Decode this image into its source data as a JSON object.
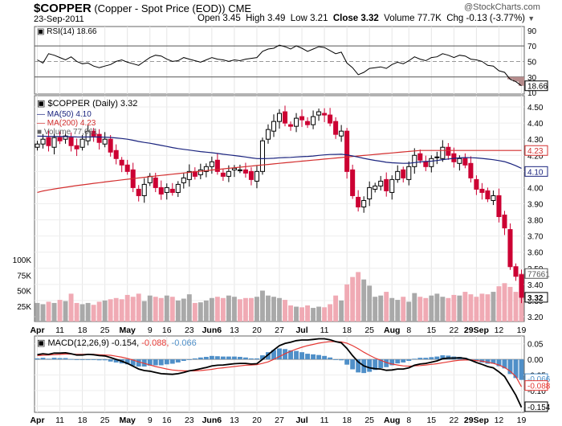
{
  "header": {
    "symbol": "$COPPER",
    "description": "(Copper - Spot Price (EOD))",
    "exchange": "CME",
    "date": "23-Sep-2011",
    "open_label": "Open",
    "open": "3.45",
    "high_label": "High",
    "high": "3.49",
    "low_label": "Low",
    "low": "3.21",
    "close_label": "Close",
    "close": "3.32",
    "volume_label": "Volume",
    "volume": "77.7K",
    "chg_label": "Chg",
    "chg": "-0.13 (-3.77%)",
    "watermark": "@StockCharts.com"
  },
  "colors": {
    "up": "#000000",
    "down": "#cc0033",
    "ma50": "#1a237e",
    "ma200": "#d32f2f",
    "vol_up": "#a9a9a9",
    "vol_down": "#f0aab4",
    "macd": "#000000",
    "signal": "#e53935",
    "hist": "#4f8fc8",
    "rsi": "#000000"
  },
  "chart_data": [
    {
      "type": "line",
      "panel": "rsi",
      "legend": "RSI(14) 18.66",
      "yticks": [
        10,
        30,
        50,
        70,
        90
      ],
      "ylim": [
        8,
        95
      ],
      "levels": [
        30,
        70
      ],
      "last_label": "18.66",
      "values": [
        52,
        48,
        60,
        58,
        55,
        52,
        56,
        50,
        47,
        48,
        44,
        42,
        44,
        46,
        50,
        52,
        49,
        47,
        45,
        50,
        55,
        58,
        57,
        53,
        50,
        51,
        55,
        53,
        51,
        49,
        52,
        55,
        53,
        52,
        50,
        52,
        51,
        53,
        54,
        55,
        63,
        66,
        67,
        71,
        69,
        66,
        70,
        67,
        63,
        66,
        69,
        68,
        64,
        60,
        62,
        48,
        42,
        33,
        36,
        41,
        42,
        43,
        41,
        46,
        49,
        47,
        51,
        56,
        53,
        51,
        55,
        56,
        60,
        58,
        55,
        58,
        57,
        53,
        52,
        50,
        45,
        44,
        38,
        36,
        27,
        24,
        18.66
      ]
    },
    {
      "type": "candlestick",
      "panel": "price",
      "legend": "$COPPER (Daily) 3.32",
      "ma_legends": [
        "MA(50) 4.10",
        "MA(200) 4.23"
      ],
      "yticks": [
        3.2,
        3.3,
        3.4,
        3.5,
        3.6,
        3.7,
        3.8,
        3.9,
        4.0,
        4.1,
        4.2,
        4.3,
        4.4,
        4.5
      ],
      "ylim": [
        3.17,
        4.57
      ],
      "last_labels": {
        "ma200": "4.23",
        "ma50": "4.10",
        "close": "3.32"
      },
      "x": [
        "Apr",
        "11",
        "18",
        "25",
        "May",
        "9",
        "16",
        "23",
        "Jun6",
        "13",
        "20",
        "27",
        "Jul",
        "11",
        "18",
        "25",
        "Aug",
        "8",
        "15",
        "22",
        "29Sep",
        "12",
        "19"
      ],
      "closes": [
        4.27,
        4.3,
        4.26,
        4.31,
        4.29,
        4.32,
        4.26,
        4.24,
        4.3,
        4.35,
        4.32,
        4.28,
        4.3,
        4.22,
        4.18,
        4.14,
        4.1,
        4.0,
        3.95,
        4.02,
        4.07,
        4.0,
        3.96,
        4.0,
        3.97,
        4.02,
        4.06,
        4.1,
        4.07,
        4.11,
        4.13,
        4.16,
        4.1,
        4.07,
        4.1,
        4.12,
        4.11,
        4.09,
        4.05,
        4.1,
        4.29,
        4.36,
        4.41,
        4.46,
        4.4,
        4.38,
        4.43,
        4.42,
        4.39,
        4.44,
        4.47,
        4.45,
        4.4,
        4.33,
        4.35,
        4.1,
        3.95,
        3.88,
        3.92,
        4.0,
        4.01,
        4.04,
        3.98,
        4.05,
        4.1,
        4.06,
        4.13,
        4.2,
        4.17,
        4.13,
        4.18,
        4.19,
        4.25,
        4.2,
        4.16,
        4.18,
        4.14,
        4.06,
        3.99,
        3.97,
        3.93,
        3.95,
        3.82,
        3.75,
        3.51,
        3.45,
        3.32
      ]
    },
    {
      "type": "bar",
      "panel": "volume",
      "legend": "Volume 77,661",
      "yticks": [
        "25K",
        "50K",
        "75K",
        "100K"
      ],
      "ylim": [
        0,
        130000
      ],
      "last_label": "77661",
      "values": [
        30000,
        28000,
        32000,
        30000,
        35000,
        33000,
        45000,
        30000,
        28000,
        30000,
        27000,
        32000,
        34000,
        36000,
        38000,
        36000,
        43000,
        40000,
        45000,
        33000,
        42000,
        40000,
        38000,
        42000,
        40000,
        34000,
        37000,
        44000,
        30000,
        31000,
        34000,
        38000,
        40000,
        38000,
        42000,
        40000,
        36000,
        38000,
        38000,
        40000,
        50000,
        42000,
        40000,
        38000,
        35000,
        26000,
        24000,
        23000,
        26000,
        22000,
        24000,
        23000,
        28000,
        42000,
        34000,
        60000,
        72000,
        80000,
        68000,
        58000,
        40000,
        42000,
        48000,
        38000,
        35000,
        40000,
        32000,
        46000,
        40000,
        38000,
        42000,
        45000,
        40000,
        38000,
        43000,
        42000,
        48000,
        44000,
        40000,
        45000,
        44000,
        48000,
        57000,
        62000,
        56000,
        48000,
        77661
      ]
    },
    {
      "type": "line",
      "panel": "macd",
      "legend_prefix": "MACD(12,26,9)",
      "legend_macd": "-0.154",
      "legend_signal": "-0.088",
      "legend_hist": "-0.066",
      "yticks": [
        "0.05",
        "0.00",
        "-0.05",
        "-0.10",
        "-0.15"
      ],
      "ylim": [
        -0.17,
        0.075
      ],
      "last_labels": {
        "hist": "-0.066",
        "signal": "-0.088",
        "macd": "-0.154"
      },
      "macd": [
        0.015,
        0.018,
        0.016,
        0.02,
        0.02,
        0.021,
        0.018,
        0.014,
        0.014,
        0.016,
        0.015,
        0.012,
        0.011,
        0.006,
        0.0,
        -0.006,
        -0.013,
        -0.022,
        -0.031,
        -0.036,
        -0.038,
        -0.042,
        -0.046,
        -0.047,
        -0.048,
        -0.046,
        -0.042,
        -0.037,
        -0.034,
        -0.03,
        -0.026,
        -0.021,
        -0.019,
        -0.018,
        -0.016,
        -0.014,
        -0.013,
        -0.013,
        -0.015,
        -0.014,
        0.0,
        0.015,
        0.03,
        0.044,
        0.051,
        0.055,
        0.06,
        0.062,
        0.062,
        0.064,
        0.066,
        0.066,
        0.063,
        0.057,
        0.053,
        0.035,
        0.012,
        -0.008,
        -0.021,
        -0.027,
        -0.03,
        -0.031,
        -0.035,
        -0.034,
        -0.031,
        -0.031,
        -0.027,
        -0.019,
        -0.015,
        -0.013,
        -0.009,
        -0.005,
        0.002,
        0.004,
        0.004,
        0.005,
        0.003,
        -0.003,
        -0.01,
        -0.016,
        -0.023,
        -0.027,
        -0.04,
        -0.055,
        -0.085,
        -0.115,
        -0.154
      ],
      "signal": [
        0.012,
        0.013,
        0.014,
        0.015,
        0.016,
        0.017,
        0.017,
        0.016,
        0.016,
        0.016,
        0.016,
        0.015,
        0.014,
        0.013,
        0.01,
        0.007,
        0.003,
        -0.002,
        -0.008,
        -0.013,
        -0.018,
        -0.023,
        -0.027,
        -0.031,
        -0.034,
        -0.036,
        -0.037,
        -0.037,
        -0.037,
        -0.036,
        -0.034,
        -0.032,
        -0.029,
        -0.027,
        -0.025,
        -0.023,
        -0.021,
        -0.019,
        -0.018,
        -0.017,
        -0.013,
        -0.008,
        0.0,
        0.009,
        0.018,
        0.026,
        0.033,
        0.039,
        0.044,
        0.048,
        0.052,
        0.055,
        0.057,
        0.057,
        0.056,
        0.052,
        0.044,
        0.034,
        0.023,
        0.013,
        0.004,
        -0.003,
        -0.01,
        -0.015,
        -0.018,
        -0.021,
        -0.022,
        -0.021,
        -0.02,
        -0.018,
        -0.016,
        -0.014,
        -0.011,
        -0.008,
        -0.005,
        -0.003,
        -0.002,
        -0.002,
        -0.004,
        -0.006,
        -0.009,
        -0.013,
        -0.018,
        -0.026,
        -0.038,
        -0.055,
        -0.088
      ]
    }
  ]
}
